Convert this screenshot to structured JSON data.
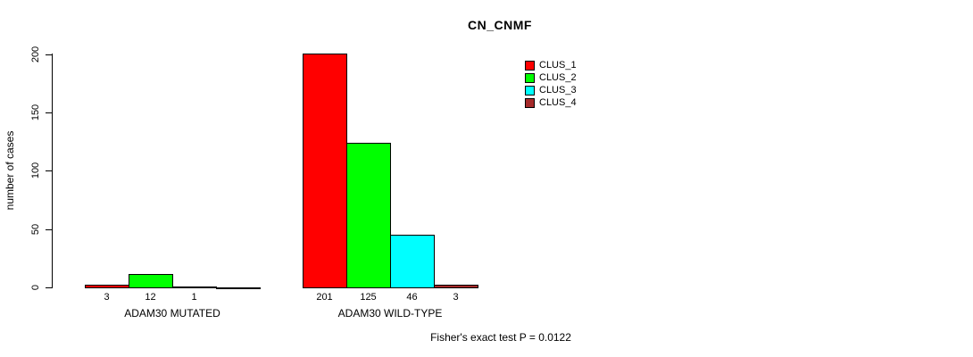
{
  "title": "CN_CNMF",
  "chart_data": {
    "type": "bar",
    "categories": [
      "ADAM30 MUTATED",
      "ADAM30 WILD-TYPE"
    ],
    "series": [
      {
        "name": "CLUS_1",
        "color": "#FF0000",
        "values": [
          3,
          201
        ]
      },
      {
        "name": "CLUS_2",
        "color": "#00FF00",
        "values": [
          12,
          125
        ]
      },
      {
        "name": "CLUS_3",
        "color": "#00FFFF",
        "values": [
          1,
          46
        ]
      },
      {
        "name": "CLUS_4",
        "color": "#A52A2A",
        "values": [
          0,
          3
        ]
      }
    ],
    "bar_labels": [
      [
        "3",
        "12",
        "1",
        ""
      ],
      [
        "201",
        "125",
        "46",
        "3"
      ]
    ],
    "ylabel": "number of cases",
    "xlabel": "",
    "yticks": [
      "0",
      "50",
      "100",
      "150",
      "200"
    ],
    "ylim": [
      0,
      200
    ],
    "legend_position": "top-right",
    "grid": false,
    "background": "#ffffff",
    "axis_color": "#000000"
  },
  "footer": {
    "note": "Fisher's exact test P = 0.0122"
  }
}
